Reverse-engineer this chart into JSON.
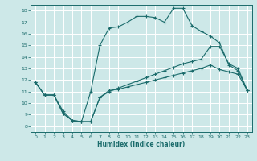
{
  "xlabel": "Humidex (Indice chaleur)",
  "bg_color": "#cde8e8",
  "grid_color": "#ffffff",
  "line_color": "#1a6b6b",
  "xlim": [
    -0.5,
    23.5
  ],
  "ylim": [
    7.5,
    18.5
  ],
  "yticks": [
    8,
    9,
    10,
    11,
    12,
    13,
    14,
    15,
    16,
    17,
    18
  ],
  "xticks": [
    0,
    1,
    2,
    3,
    4,
    5,
    6,
    7,
    8,
    9,
    10,
    11,
    12,
    13,
    14,
    15,
    16,
    17,
    18,
    19,
    20,
    21,
    22,
    23
  ],
  "line1_x": [
    0,
    1,
    2,
    3,
    4,
    5,
    6,
    7,
    8,
    9,
    10,
    11,
    12,
    13,
    14,
    15,
    16,
    17,
    18,
    19,
    20,
    21,
    22,
    23
  ],
  "line1_y": [
    11.8,
    10.7,
    10.7,
    9.1,
    8.5,
    8.4,
    8.4,
    10.5,
    11.1,
    11.2,
    11.4,
    11.6,
    11.8,
    12.0,
    12.2,
    12.4,
    12.6,
    12.8,
    13.0,
    13.3,
    12.9,
    12.7,
    12.5,
    11.1
  ],
  "line2_x": [
    0,
    1,
    2,
    3,
    4,
    5,
    6,
    7,
    8,
    9,
    10,
    11,
    12,
    13,
    14,
    15,
    16,
    17,
    18,
    19,
    20,
    21,
    22,
    23
  ],
  "line2_y": [
    11.8,
    10.7,
    10.7,
    9.1,
    8.5,
    8.4,
    8.4,
    10.5,
    11.0,
    11.3,
    11.6,
    11.9,
    12.2,
    12.5,
    12.8,
    13.1,
    13.4,
    13.6,
    13.8,
    14.9,
    14.9,
    13.4,
    13.0,
    11.1
  ],
  "line3_x": [
    0,
    1,
    2,
    3,
    4,
    5,
    6,
    7,
    8,
    9,
    10,
    11,
    12,
    13,
    14,
    15,
    16,
    17,
    18,
    19,
    20,
    21,
    22,
    23
  ],
  "line3_y": [
    11.8,
    10.7,
    10.7,
    9.3,
    8.5,
    8.4,
    11.0,
    15.0,
    16.5,
    16.6,
    17.0,
    17.5,
    17.5,
    17.4,
    17.0,
    18.2,
    18.2,
    16.7,
    16.2,
    15.8,
    15.2,
    13.3,
    12.8,
    11.1
  ]
}
